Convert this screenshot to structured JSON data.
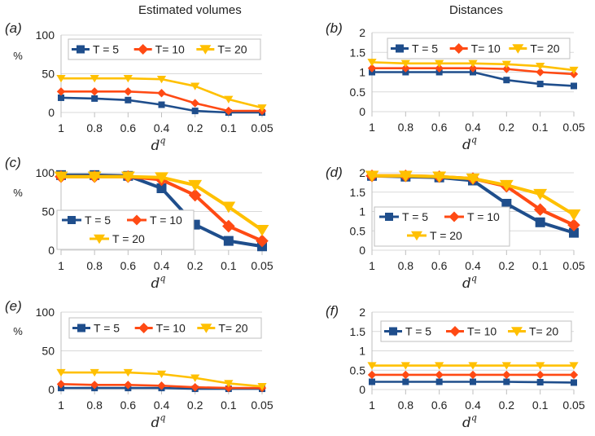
{
  "headers": {
    "left": "Estimated volumes",
    "right": "Distances"
  },
  "colors": {
    "T = 5": "#1f4e8c",
    "T = 10": "#ff4a14",
    "T = 20": "#ffc000"
  },
  "chart_data": [
    {
      "panel": "(a)",
      "type": "line",
      "ylabel": "%",
      "xlabel_base": "d",
      "xlabel_sup": "q",
      "categories": [
        "1",
        "0.8",
        "0.6",
        "0.4",
        "0.2",
        "0.1",
        "0.05"
      ],
      "ylim": [
        0,
        100
      ],
      "yticks": [
        "0",
        "50",
        "100"
      ],
      "grid": true,
      "legend_layout": "row",
      "series": [
        {
          "name": "T = 5",
          "legend": "T = 5",
          "marker": "square",
          "values": [
            19,
            18,
            16,
            10,
            2,
            0,
            0
          ]
        },
        {
          "name": "T = 10",
          "legend": "T= 10",
          "marker": "diamond",
          "values": [
            27,
            27,
            27,
            25,
            12,
            2,
            2
          ]
        },
        {
          "name": "T = 20",
          "legend": "T= 20",
          "marker": "triangle",
          "values": [
            44,
            44,
            44,
            43,
            34,
            17,
            6
          ]
        }
      ]
    },
    {
      "panel": "(b)",
      "type": "line",
      "ylabel": "",
      "xlabel_base": "d",
      "xlabel_sup": "q",
      "categories": [
        "1",
        "0.8",
        "0.6",
        "0.4",
        "0.2",
        "0.1",
        "0.05"
      ],
      "ylim": [
        0,
        2
      ],
      "yticks": [
        "0",
        "0.5",
        "1",
        "1.5",
        "2"
      ],
      "grid": true,
      "legend_layout": "row",
      "series": [
        {
          "name": "T = 5",
          "legend": "T = 5",
          "marker": "square",
          "values": [
            1.0,
            1.0,
            1.0,
            1.0,
            0.8,
            0.7,
            0.65
          ]
        },
        {
          "name": "T = 10",
          "legend": "T= 10",
          "marker": "diamond",
          "values": [
            1.1,
            1.1,
            1.1,
            1.1,
            1.08,
            1.0,
            0.95
          ]
        },
        {
          "name": "T = 20",
          "legend": "T= 20",
          "marker": "triangle",
          "values": [
            1.25,
            1.22,
            1.22,
            1.22,
            1.2,
            1.15,
            1.05
          ]
        }
      ]
    },
    {
      "panel": "(c)",
      "type": "line",
      "ylabel": "%",
      "xlabel_base": "d",
      "xlabel_sup": "q",
      "categories": [
        "1",
        "0.8",
        "0.6",
        "0.4",
        "0.2",
        "0.1",
        "0.05"
      ],
      "ylim": [
        0,
        100
      ],
      "yticks": [
        "0",
        "50",
        "100"
      ],
      "grid": true,
      "legend_layout": "box",
      "series": [
        {
          "name": "T = 5",
          "legend": "T = 5",
          "marker": "square",
          "values": [
            97,
            97,
            96,
            80,
            33,
            12,
            5
          ]
        },
        {
          "name": "T = 10",
          "legend": "T = 10",
          "marker": "diamond",
          "values": [
            95,
            95,
            95,
            91,
            71,
            31,
            12
          ]
        },
        {
          "name": "T = 20",
          "legend": "T = 20",
          "marker": "triangle",
          "values": [
            95,
            95,
            95,
            94,
            84,
            56,
            26
          ]
        }
      ]
    },
    {
      "panel": "(d)",
      "type": "line",
      "ylabel": "",
      "xlabel_base": "d",
      "xlabel_sup": "q",
      "categories": [
        "1",
        "0.8",
        "0.6",
        "0.4",
        "0.2",
        "0.1",
        "0.05"
      ],
      "ylim": [
        0,
        2
      ],
      "yticks": [
        "0",
        "0.5",
        "1",
        "1.5",
        "2"
      ],
      "grid": true,
      "legend_layout": "box",
      "series": [
        {
          "name": "T = 5",
          "legend": "T = 5",
          "marker": "square",
          "values": [
            1.92,
            1.9,
            1.88,
            1.8,
            1.2,
            0.72,
            0.45
          ]
        },
        {
          "name": "T = 10",
          "legend": "T = 10",
          "marker": "diamond",
          "values": [
            1.92,
            1.92,
            1.9,
            1.85,
            1.65,
            1.05,
            0.65
          ]
        },
        {
          "name": "T = 20",
          "legend": "T = 20",
          "marker": "triangle",
          "values": [
            1.92,
            1.92,
            1.9,
            1.85,
            1.68,
            1.45,
            0.92
          ]
        }
      ]
    },
    {
      "panel": "(e)",
      "type": "line",
      "ylabel": "%",
      "xlabel_base": "d",
      "xlabel_sup": "q",
      "categories": [
        "1",
        "0.8",
        "0.6",
        "0.4",
        "0.2",
        "0.1",
        "0.05"
      ],
      "ylim": [
        0,
        100
      ],
      "yticks": [
        "0",
        "50",
        "100"
      ],
      "grid": true,
      "legend_layout": "row",
      "series": [
        {
          "name": "T = 5",
          "legend": "T = 5",
          "marker": "square",
          "values": [
            2,
            2,
            2,
            2,
            1,
            1,
            1
          ]
        },
        {
          "name": "T = 10",
          "legend": "T= 10",
          "marker": "diamond",
          "values": [
            7,
            6,
            6,
            5,
            3,
            2,
            2
          ]
        },
        {
          "name": "T = 20",
          "legend": "T= 20",
          "marker": "triangle",
          "values": [
            22,
            22,
            22,
            20,
            15,
            8,
            4
          ]
        }
      ]
    },
    {
      "panel": "(f)",
      "type": "line",
      "ylabel": "",
      "xlabel_base": "d",
      "xlabel_sup": "q",
      "categories": [
        "1",
        "0.8",
        "0.6",
        "0.4",
        "0.2",
        "0.1",
        "0.05"
      ],
      "ylim": [
        0,
        2
      ],
      "yticks": [
        "0",
        "0.5",
        "1",
        "1.5",
        "2"
      ],
      "grid": true,
      "legend_layout": "row",
      "series": [
        {
          "name": "T = 5",
          "legend": "T = 5",
          "marker": "square",
          "values": [
            0.2,
            0.2,
            0.2,
            0.2,
            0.2,
            0.19,
            0.18
          ]
        },
        {
          "name": "T = 10",
          "legend": "T= 10",
          "marker": "diamond",
          "values": [
            0.38,
            0.38,
            0.38,
            0.38,
            0.38,
            0.38,
            0.38
          ]
        },
        {
          "name": "T = 20",
          "legend": "T= 20",
          "marker": "triangle",
          "values": [
            0.62,
            0.62,
            0.62,
            0.62,
            0.62,
            0.62,
            0.62
          ]
        }
      ]
    }
  ]
}
